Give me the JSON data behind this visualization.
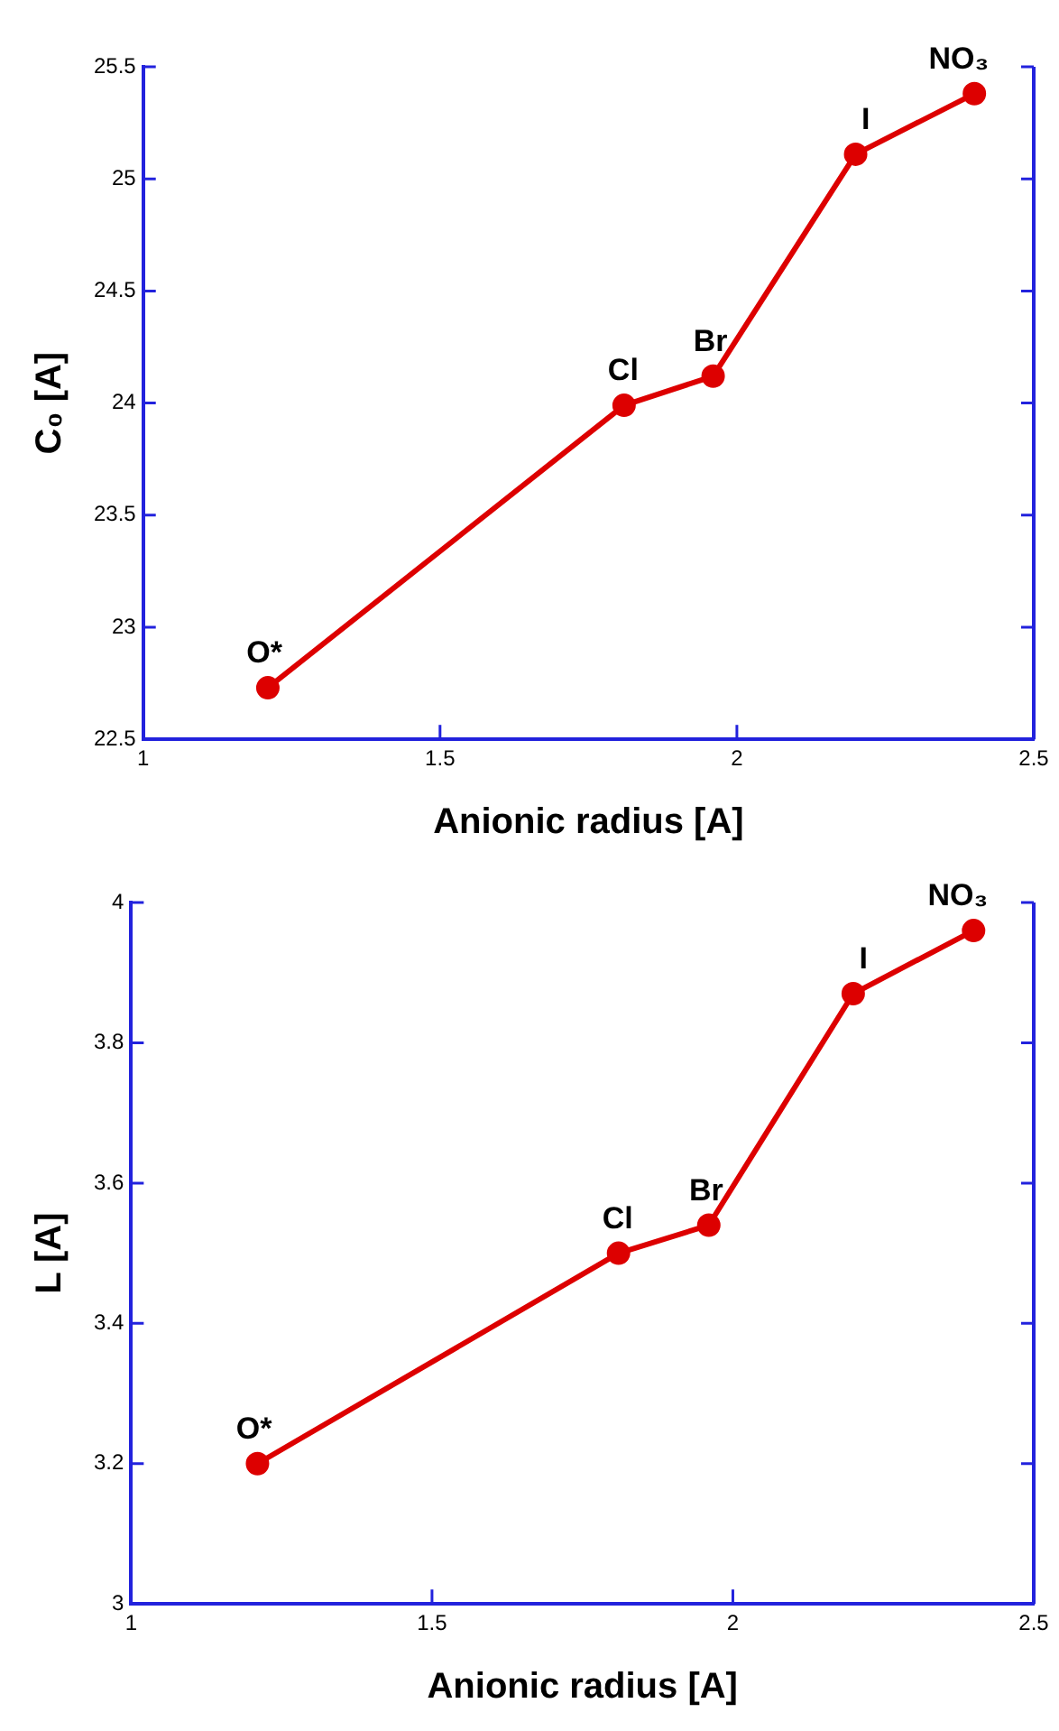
{
  "chart_data": [
    {
      "type": "line",
      "xlabel": "Anionic radius [A]",
      "ylabel": "C₀ [A]",
      "xlim": [
        1,
        2.5
      ],
      "xticks": [
        1,
        1.5,
        2,
        2.5
      ],
      "ylim": [
        22.5,
        25.5
      ],
      "yticks": [
        22.5,
        23,
        23.5,
        24,
        24.5,
        25,
        25.5
      ],
      "grid": false,
      "legend": false,
      "marker": "circle",
      "line_style": "solid",
      "series": [
        {
          "color": "#dd0000",
          "x": [
            1.21,
            1.81,
            1.96,
            2.2,
            2.4
          ],
          "values": [
            22.73,
            23.99,
            24.12,
            25.11,
            25.38
          ]
        }
      ],
      "annotations": [
        {
          "text": "O*",
          "x": 1.21,
          "y": 22.73
        },
        {
          "text": "Cl",
          "x": 1.81,
          "y": 23.99
        },
        {
          "text": "Br",
          "x": 1.96,
          "y": 24.12
        },
        {
          "text": "I",
          "x": 2.2,
          "y": 25.11
        },
        {
          "text": "NO₃",
          "x": 2.4,
          "y": 25.38
        }
      ]
    },
    {
      "type": "line",
      "xlabel": "Anionic radius [A]",
      "ylabel": "L [A]",
      "xlim": [
        1,
        2.5
      ],
      "xticks": [
        1,
        1.5,
        2,
        2.5
      ],
      "ylim": [
        3,
        4
      ],
      "yticks": [
        3,
        3.2,
        3.4,
        3.6,
        3.8,
        4
      ],
      "grid": false,
      "legend": false,
      "marker": "circle",
      "line_style": "solid",
      "series": [
        {
          "color": "#dd0000",
          "x": [
            1.21,
            1.81,
            1.96,
            2.2,
            2.4
          ],
          "values": [
            3.2,
            3.5,
            3.54,
            3.87,
            3.96
          ]
        }
      ],
      "annotations": [
        {
          "text": "O*",
          "x": 1.21,
          "y": 3.2
        },
        {
          "text": "Cl",
          "x": 1.81,
          "y": 3.5
        },
        {
          "text": "Br",
          "x": 1.96,
          "y": 3.54
        },
        {
          "text": "I",
          "x": 2.2,
          "y": 3.87
        },
        {
          "text": "NO₃",
          "x": 2.4,
          "y": 3.96
        }
      ]
    }
  ]
}
